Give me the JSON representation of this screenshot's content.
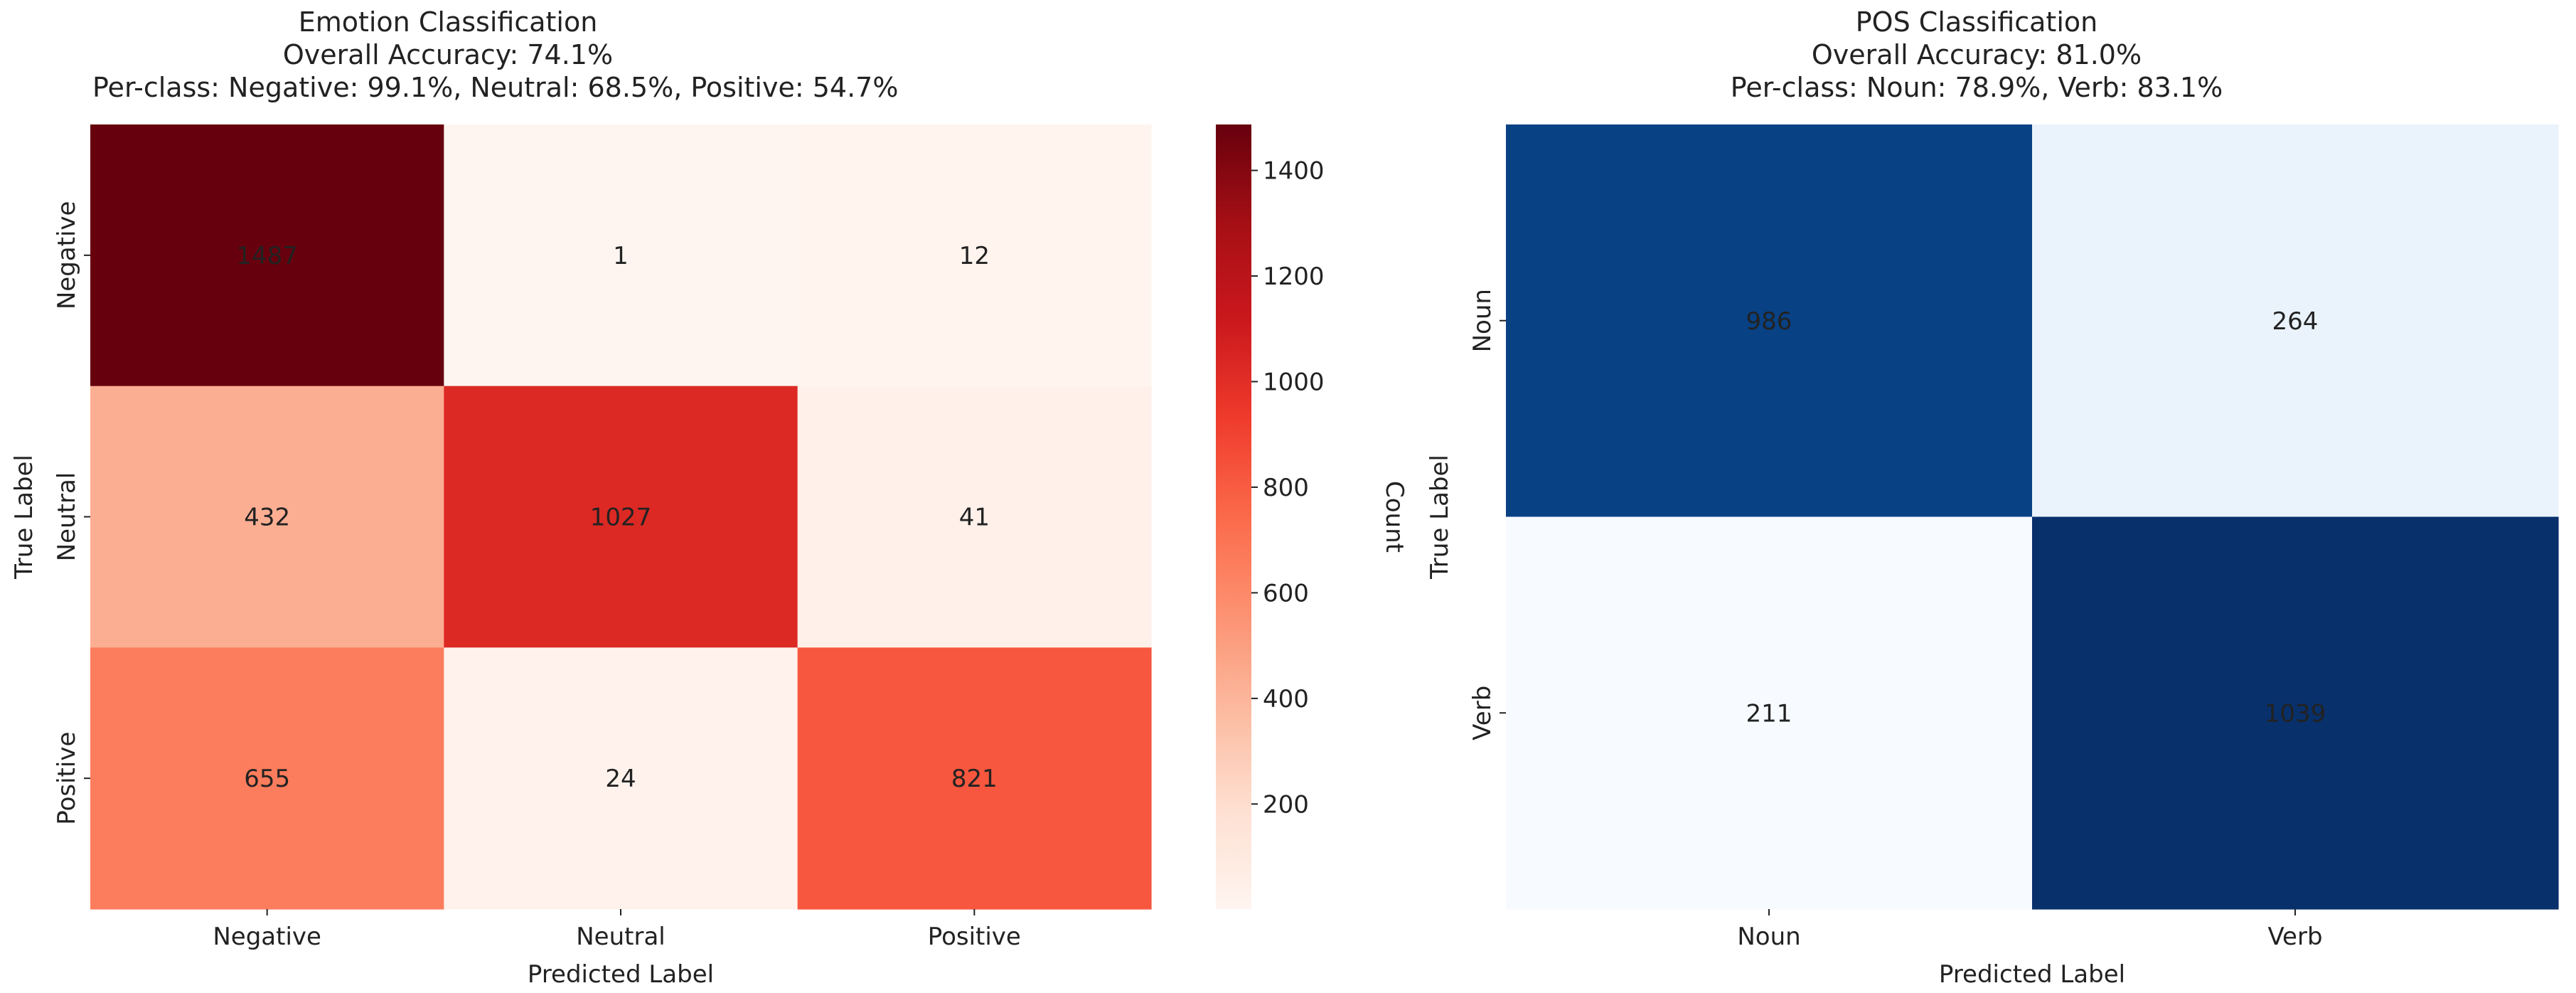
{
  "chart_data": [
    {
      "type": "heatmap",
      "title": "Emotion Classification",
      "subtitle_lines": [
        "Overall Accuracy: 74.1%",
        "Per-class: Negative: 99.1%, Neutral: 68.5%, Positive: 54.7%"
      ],
      "xlabel": "Predicted Label",
      "ylabel": "True Label",
      "x_categories": [
        "Negative",
        "Neutral",
        "Positive"
      ],
      "y_categories": [
        "Negative",
        "Neutral",
        "Positive"
      ],
      "values": [
        [
          1487,
          1,
          12
        ],
        [
          432,
          1027,
          41
        ],
        [
          655,
          24,
          821
        ]
      ],
      "colormap": "Reds",
      "colorbar": {
        "label": "Count",
        "min": 1,
        "max": 1487,
        "ticks": [
          200,
          400,
          600,
          800,
          1000,
          1200,
          1400
        ]
      }
    },
    {
      "type": "heatmap",
      "title": "POS Classification",
      "subtitle_lines": [
        "Overall Accuracy: 81.0%",
        "Per-class: Noun: 78.9%, Verb: 83.1%"
      ],
      "xlabel": "Predicted Label",
      "ylabel": "True Label",
      "x_categories": [
        "Noun",
        "Verb"
      ],
      "y_categories": [
        "Noun",
        "Verb"
      ],
      "values": [
        [
          986,
          264
        ],
        [
          211,
          1039
        ]
      ],
      "colormap": "Blues"
    }
  ]
}
